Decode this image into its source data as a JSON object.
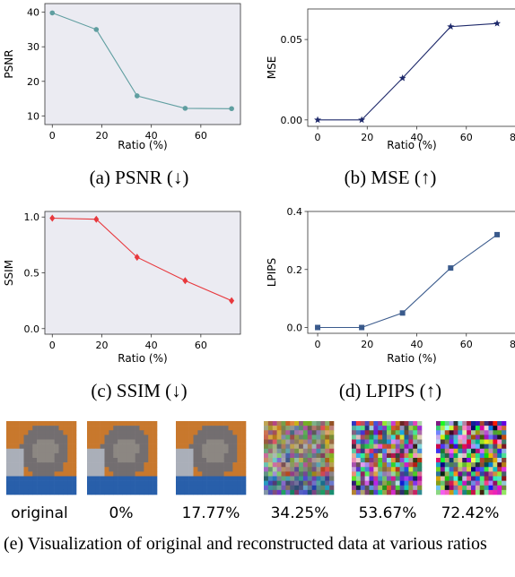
{
  "chart_data": [
    {
      "type": "line",
      "id": "psnr",
      "x": [
        0,
        17.77,
        34.25,
        53.67,
        72.42
      ],
      "values": [
        39.8,
        35.0,
        15.8,
        12.2,
        12.1
      ],
      "xlabel": "Ratio (%)",
      "ylabel": "PSNR",
      "xlim": [
        -3,
        76
      ],
      "ylim": [
        7.5,
        42.5
      ],
      "xticks": [
        0,
        20,
        40,
        60
      ],
      "yticks": [
        10,
        20,
        30,
        40
      ],
      "ytick_labels": [
        "10",
        "20",
        "30",
        "40"
      ],
      "color": "#5f9ea0",
      "marker": "circle",
      "background": "#ebebf2",
      "grid": false
    },
    {
      "type": "line",
      "id": "mse",
      "x": [
        0,
        17.77,
        34.25,
        53.67,
        72.42
      ],
      "values": [
        0.0,
        0.0,
        0.026,
        0.058,
        0.06
      ],
      "xlabel": "Ratio (%)",
      "ylabel": "MSE",
      "xlim": [
        -4,
        80
      ],
      "ylim": [
        -0.004,
        0.069
      ],
      "xticks": [
        0,
        20,
        40,
        60,
        80
      ],
      "yticks": [
        0.0,
        0.05
      ],
      "ytick_labels": [
        "0.00",
        "0.05"
      ],
      "color": "#1f2a6b",
      "marker": "star",
      "background": "#ffffff",
      "grid": false
    },
    {
      "type": "line",
      "id": "ssim",
      "x": [
        0,
        17.77,
        34.25,
        53.67,
        72.42
      ],
      "values": [
        0.99,
        0.98,
        0.64,
        0.43,
        0.25
      ],
      "xlabel": "Ratio (%)",
      "ylabel": "SSIM",
      "xlim": [
        -3,
        76
      ],
      "ylim": [
        -0.05,
        1.05
      ],
      "xticks": [
        0,
        20,
        40,
        60
      ],
      "yticks": [
        0.0,
        0.5,
        1.0
      ],
      "ytick_labels": [
        "0.0",
        "0.5",
        "1.0"
      ],
      "color": "#e8383d",
      "marker": "diamond",
      "background": "#ebebf2",
      "grid": false
    },
    {
      "type": "line",
      "id": "lpips",
      "x": [
        0,
        17.77,
        34.25,
        53.67,
        72.42
      ],
      "values": [
        0.0,
        0.0,
        0.05,
        0.205,
        0.32
      ],
      "xlabel": "Ratio (%)",
      "ylabel": "LPIPS",
      "xlim": [
        -4,
        80
      ],
      "ylim": [
        -0.02,
        0.4
      ],
      "xticks": [
        0,
        20,
        40,
        60,
        80
      ],
      "yticks": [
        0.0,
        0.2,
        0.4
      ],
      "ytick_labels": [
        "0.0",
        "0.2",
        "0.4"
      ],
      "color": "#3a5a8c",
      "marker": "square",
      "background": "#ffffff",
      "grid": false
    }
  ],
  "captions": {
    "a": "(a)  PSNR (↓)",
    "b": "(b)  MSE (↑)",
    "c": "(c)  SSIM (↓)",
    "d": "(d)  LPIPS (↑)",
    "e": "(e)  Visualization of original and reconstructed data at various ratios"
  },
  "images": {
    "labels": [
      "original",
      "0%",
      "17.77%",
      "34.25%",
      "53.67%",
      "72.42%"
    ],
    "subject_icon": "cat-photo",
    "noise_levels": [
      0,
      0,
      0,
      0.45,
      0.85,
      1.0
    ]
  }
}
